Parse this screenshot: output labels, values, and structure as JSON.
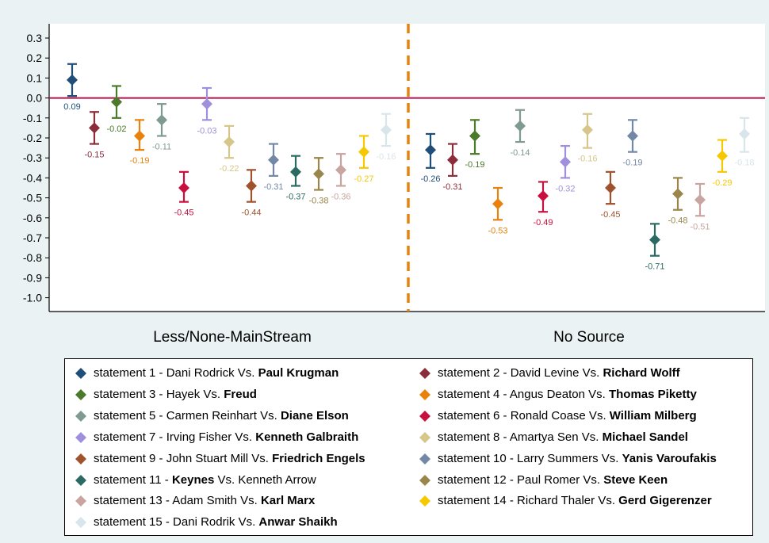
{
  "chart_data": {
    "type": "scatter",
    "subtype": "point-with-error-bars",
    "ylim": [
      -1.0,
      0.3
    ],
    "yticks": [
      "0.3",
      "0.2",
      "0.1",
      "0.0",
      "-0.1",
      "-0.2",
      "-0.3",
      "-0.4",
      "-0.5",
      "-0.6",
      "-0.7",
      "-0.8",
      "-0.9",
      "-1.0"
    ],
    "groups": [
      "Less/None-MainStream",
      "No Source"
    ],
    "reference_line": 0.0,
    "reference_line_color": "#b0134a",
    "divider_color": "#e8820c",
    "grid": false,
    "legend_position": "bottom",
    "series": [
      {
        "name_plain": "statement 1 - Dani Rodrick Vs. ",
        "name_bold": "Paul Krugman",
        "color": "#1f4e79",
        "values": [
          0.09,
          -0.26
        ],
        "ci_low": [
          0.01,
          -0.35
        ],
        "ci_high": [
          0.17,
          -0.18
        ],
        "labels": [
          "0.09",
          "-0.26"
        ]
      },
      {
        "name_plain": "statement 2 - David Levine Vs. ",
        "name_bold": "Richard Wolff",
        "color": "#8b2d3a",
        "values": [
          -0.15,
          -0.31
        ],
        "ci_low": [
          -0.23,
          -0.39
        ],
        "ci_high": [
          -0.07,
          -0.23
        ],
        "labels": [
          "-0.15",
          "-0.31"
        ]
      },
      {
        "name_plain": "statement 3 - Hayek Vs. ",
        "name_bold": "Freud",
        "color": "#4a7a2a",
        "values": [
          -0.02,
          -0.19
        ],
        "ci_low": [
          -0.1,
          -0.28
        ],
        "ci_high": [
          0.06,
          -0.11
        ],
        "labels": [
          "-0.02",
          "-0.19"
        ]
      },
      {
        "name_plain": "statement 4 - Angus Deaton Vs. ",
        "name_bold": "Thomas Piketty",
        "color": "#e8820c",
        "values": [
          -0.19,
          -0.53
        ],
        "ci_low": [
          -0.26,
          -0.61
        ],
        "ci_high": [
          -0.11,
          -0.45
        ],
        "labels": [
          "-0.19",
          "-0.53"
        ]
      },
      {
        "name_plain": "statement 5 - Carmen Reinhart Vs. ",
        "name_bold": "Diane Elson",
        "color": "#7f9a90",
        "values": [
          -0.11,
          -0.14
        ],
        "ci_low": [
          -0.19,
          -0.22
        ],
        "ci_high": [
          -0.03,
          -0.06
        ],
        "labels": [
          "-0.11",
          "-0.14"
        ]
      },
      {
        "name_plain": "statement 6 - Ronald Coase Vs. ",
        "name_bold": "William Milberg",
        "color": "#c8103f",
        "values": [
          -0.45,
          -0.49
        ],
        "ci_low": [
          -0.52,
          -0.57
        ],
        "ci_high": [
          -0.37,
          -0.42
        ],
        "labels": [
          "-0.45",
          "-0.49"
        ]
      },
      {
        "name_plain": "statement 7 - Irving Fisher Vs. ",
        "name_bold": "Kenneth Galbraith",
        "color": "#9f8fdc",
        "values": [
          -0.03,
          -0.32
        ],
        "ci_low": [
          -0.11,
          -0.4
        ],
        "ci_high": [
          0.05,
          -0.24
        ],
        "labels": [
          "-0.03",
          "-0.32"
        ]
      },
      {
        "name_plain": "statement 8 - Amartya Sen Vs. ",
        "name_bold": "Michael Sandel",
        "color": "#d6c68a",
        "values": [
          -0.22,
          -0.16
        ],
        "ci_low": [
          -0.3,
          -0.25
        ],
        "ci_high": [
          -0.14,
          -0.08
        ],
        "labels": [
          "-0.22",
          "-0.16"
        ]
      },
      {
        "name_plain": "statement 9 - John Stuart Mill Vs. ",
        "name_bold": "Friedrich Engels",
        "color": "#a0522d",
        "values": [
          -0.44,
          -0.45
        ],
        "ci_low": [
          -0.52,
          -0.53
        ],
        "ci_high": [
          -0.36,
          -0.37
        ],
        "labels": [
          "-0.44",
          "-0.45"
        ]
      },
      {
        "name_plain": "statement 10 - Larry Summers Vs. ",
        "name_bold": "Yanis Varoufakis",
        "color": "#7288a6",
        "values": [
          -0.31,
          -0.19
        ],
        "ci_low": [
          -0.39,
          -0.27
        ],
        "ci_high": [
          -0.23,
          -0.11
        ],
        "labels": [
          "-0.31",
          "-0.19"
        ]
      },
      {
        "name_plain": "statement 11 - ",
        "name_bold": "Keynes",
        "name_after": " Vs. Kenneth Arrow",
        "color": "#2a6a62",
        "values": [
          -0.37,
          -0.71
        ],
        "ci_low": [
          -0.44,
          -0.79
        ],
        "ci_high": [
          -0.29,
          -0.63
        ],
        "labels": [
          "-0.37",
          "-0.71"
        ]
      },
      {
        "name_plain": "statement 12 - Paul Romer Vs. ",
        "name_bold": "Steve Keen",
        "color": "#9a864a",
        "values": [
          -0.38,
          -0.48
        ],
        "ci_low": [
          -0.46,
          -0.56
        ],
        "ci_high": [
          -0.3,
          -0.4
        ],
        "labels": [
          "-0.38",
          "-0.48"
        ]
      },
      {
        "name_plain": "statement 13 - Adam Smith Vs. ",
        "name_bold": "Karl Marx",
        "color": "#c8a5a0",
        "values": [
          -0.36,
          -0.51
        ],
        "ci_low": [
          -0.44,
          -0.59
        ],
        "ci_high": [
          -0.28,
          -0.43
        ],
        "labels": [
          "-0.36",
          "-0.51"
        ]
      },
      {
        "name_plain": "statement 14 - Richard Thaler Vs. ",
        "name_bold": "Gerd Gigerenzer",
        "color": "#f5c800",
        "values": [
          -0.27,
          -0.29
        ],
        "ci_low": [
          -0.35,
          -0.37
        ],
        "ci_high": [
          -0.19,
          -0.21
        ],
        "labels": [
          "-0.27",
          "-0.29"
        ]
      },
      {
        "name_plain": "statement 15 - Dani Rodrik Vs. ",
        "name_bold": "Anwar Shaikh",
        "color": "#d8e6ec",
        "values": [
          -0.16,
          -0.18
        ],
        "ci_low": [
          -0.24,
          -0.27
        ],
        "ci_high": [
          -0.08,
          -0.1
        ],
        "labels": [
          "-0.16",
          "-0.18"
        ]
      }
    ]
  }
}
